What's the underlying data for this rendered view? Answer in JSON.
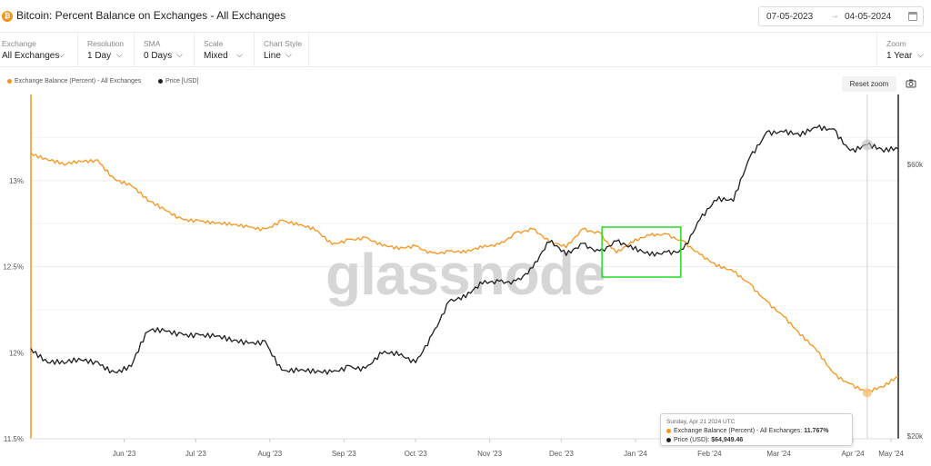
{
  "header": {
    "title": "Bitcoin: Percent Balance on Exchanges - All Exchanges",
    "btc_icon": "bitcoin-icon",
    "date_from": "07-05-2023",
    "date_to": "04-05-2024",
    "date_arrow": "→",
    "calendar_icon": "calendar-icon"
  },
  "controls": [
    {
      "label": "Exchange",
      "value": "All Exchanges"
    },
    {
      "label": "Resolution",
      "value": "1 Day"
    },
    {
      "label": "SMA",
      "value": "0 Days"
    },
    {
      "label": "Scale",
      "value": "Mixed"
    },
    {
      "label": "Chart Style",
      "value": "Line"
    }
  ],
  "zoom": {
    "label": "Zoom",
    "value": "1 Year"
  },
  "legend": {
    "series1": "Exchange Balance (Percent) - All Exchanges",
    "series2": "Price [USD]"
  },
  "reset_zoom": "Reset zoom",
  "watermark": "glassnode",
  "tooltip": {
    "date": "Sunday, Apr 21 2024 UTC",
    "row1_label": "Exchange Balance (Percent) - All Exchanges:",
    "row1_value": "11.767%",
    "row2_label": "Price (USD):",
    "row2_value": "$64,949.46"
  },
  "colors": {
    "balance": "#f7931a",
    "price": "#1f1f1f",
    "highlight_box": "#22dd22"
  },
  "chart_data": {
    "type": "line",
    "x_labels": [
      "Jun '23",
      "Jul '23",
      "Aug '23",
      "Sep '23",
      "Oct '23",
      "Nov '23",
      "Dec '23",
      "Jan '24",
      "Feb '24",
      "Mar '24",
      "Apr '24",
      "May '24"
    ],
    "x_range": [
      "2023-05-07",
      "2024-05-04"
    ],
    "y_left": {
      "ticks": [
        "13%",
        "12.5%",
        "12%",
        "11.5%"
      ],
      "tick_values": [
        13,
        12.5,
        12,
        11.5
      ],
      "range": [
        11.5,
        13.5
      ]
    },
    "y_right": {
      "ticks": [
        "$60k",
        "$20k"
      ],
      "tick_values": [
        60000,
        20000
      ],
      "scale": "log"
    },
    "grid": true,
    "legend_position": "top-left",
    "series": [
      {
        "name": "Exchange Balance (Percent) - All Exchanges",
        "axis": "left",
        "points": [
          [
            "2023-05-07",
            13.16
          ],
          [
            "2023-05-14",
            13.12
          ],
          [
            "2023-05-21",
            13.09
          ],
          [
            "2023-05-28",
            13.11
          ],
          [
            "2023-06-04",
            13.12
          ],
          [
            "2023-06-11",
            13.01
          ],
          [
            "2023-06-18",
            12.97
          ],
          [
            "2023-06-25",
            12.88
          ],
          [
            "2023-07-02",
            12.83
          ],
          [
            "2023-07-09",
            12.78
          ],
          [
            "2023-07-16",
            12.77
          ],
          [
            "2023-07-23",
            12.75
          ],
          [
            "2023-07-30",
            12.74
          ],
          [
            "2023-08-06",
            12.73
          ],
          [
            "2023-08-13",
            12.72
          ],
          [
            "2023-08-20",
            12.77
          ],
          [
            "2023-08-27",
            12.74
          ],
          [
            "2023-09-03",
            12.71
          ],
          [
            "2023-09-10",
            12.63
          ],
          [
            "2023-09-17",
            12.66
          ],
          [
            "2023-09-24",
            12.67
          ],
          [
            "2023-10-01",
            12.62
          ],
          [
            "2023-10-08",
            12.6
          ],
          [
            "2023-10-15",
            12.62
          ],
          [
            "2023-10-22",
            12.58
          ],
          [
            "2023-10-29",
            12.59
          ],
          [
            "2023-11-05",
            12.58
          ],
          [
            "2023-11-12",
            12.61
          ],
          [
            "2023-11-19",
            12.63
          ],
          [
            "2023-11-26",
            12.7
          ],
          [
            "2023-12-03",
            12.72
          ],
          [
            "2023-12-10",
            12.64
          ],
          [
            "2023-12-17",
            12.61
          ],
          [
            "2023-12-24",
            12.72
          ],
          [
            "2023-12-31",
            12.7
          ],
          [
            "2024-01-07",
            12.58
          ],
          [
            "2024-01-14",
            12.64
          ],
          [
            "2024-01-21",
            12.68
          ],
          [
            "2024-01-28",
            12.69
          ],
          [
            "2024-02-04",
            12.65
          ],
          [
            "2024-02-11",
            12.57
          ],
          [
            "2024-02-18",
            12.5
          ],
          [
            "2024-02-25",
            12.47
          ],
          [
            "2024-03-03",
            12.4
          ],
          [
            "2024-03-10",
            12.3
          ],
          [
            "2024-03-17",
            12.21
          ],
          [
            "2024-03-24",
            12.1
          ],
          [
            "2024-03-31",
            12.01
          ],
          [
            "2024-04-07",
            11.88
          ],
          [
            "2024-04-14",
            11.82
          ],
          [
            "2024-04-21",
            11.77
          ],
          [
            "2024-04-28",
            11.8
          ],
          [
            "2024-05-04",
            11.86
          ]
        ]
      },
      {
        "name": "Price [USD]",
        "axis": "right",
        "points": [
          [
            "2023-05-07",
            28500
          ],
          [
            "2023-05-14",
            26900
          ],
          [
            "2023-05-21",
            26800
          ],
          [
            "2023-05-28",
            27200
          ],
          [
            "2023-06-04",
            27000
          ],
          [
            "2023-06-11",
            25900
          ],
          [
            "2023-06-18",
            26500
          ],
          [
            "2023-06-25",
            30500
          ],
          [
            "2023-07-02",
            30600
          ],
          [
            "2023-07-09",
            30300
          ],
          [
            "2023-07-16",
            30200
          ],
          [
            "2023-07-23",
            29900
          ],
          [
            "2023-07-30",
            29300
          ],
          [
            "2023-08-06",
            29100
          ],
          [
            "2023-08-13",
            29400
          ],
          [
            "2023-08-20",
            26100
          ],
          [
            "2023-08-27",
            26000
          ],
          [
            "2023-09-03",
            25800
          ],
          [
            "2023-09-10",
            25900
          ],
          [
            "2023-09-17",
            26600
          ],
          [
            "2023-09-24",
            26300
          ],
          [
            "2023-10-01",
            27900
          ],
          [
            "2023-10-08",
            27700
          ],
          [
            "2023-10-15",
            26900
          ],
          [
            "2023-10-22",
            30200
          ],
          [
            "2023-10-29",
            34500
          ],
          [
            "2023-11-05",
            35000
          ],
          [
            "2023-11-12",
            37000
          ],
          [
            "2023-11-19",
            37400
          ],
          [
            "2023-11-26",
            37500
          ],
          [
            "2023-12-03",
            39500
          ],
          [
            "2023-12-10",
            43800
          ],
          [
            "2023-12-17",
            41500
          ],
          [
            "2023-12-24",
            43600
          ],
          [
            "2023-12-31",
            42300
          ],
          [
            "2024-01-07",
            44000
          ],
          [
            "2024-01-14",
            42500
          ],
          [
            "2024-01-21",
            41500
          ],
          [
            "2024-01-28",
            42100
          ],
          [
            "2024-02-04",
            42600
          ],
          [
            "2024-02-11",
            48000
          ],
          [
            "2024-02-18",
            51800
          ],
          [
            "2024-02-25",
            51700
          ],
          [
            "2024-03-03",
            62000
          ],
          [
            "2024-03-10",
            68500
          ],
          [
            "2024-03-17",
            68400
          ],
          [
            "2024-03-24",
            67200
          ],
          [
            "2024-03-31",
            69600
          ],
          [
            "2024-04-07",
            69300
          ],
          [
            "2024-04-14",
            63500
          ],
          [
            "2024-04-21",
            64949
          ],
          [
            "2024-04-28",
            63100
          ],
          [
            "2024-05-04",
            63900
          ]
        ]
      }
    ],
    "annotations": [
      {
        "type": "highlight-box",
        "x_range": [
          "2024-01-01",
          "2024-02-03"
        ]
      }
    ]
  }
}
